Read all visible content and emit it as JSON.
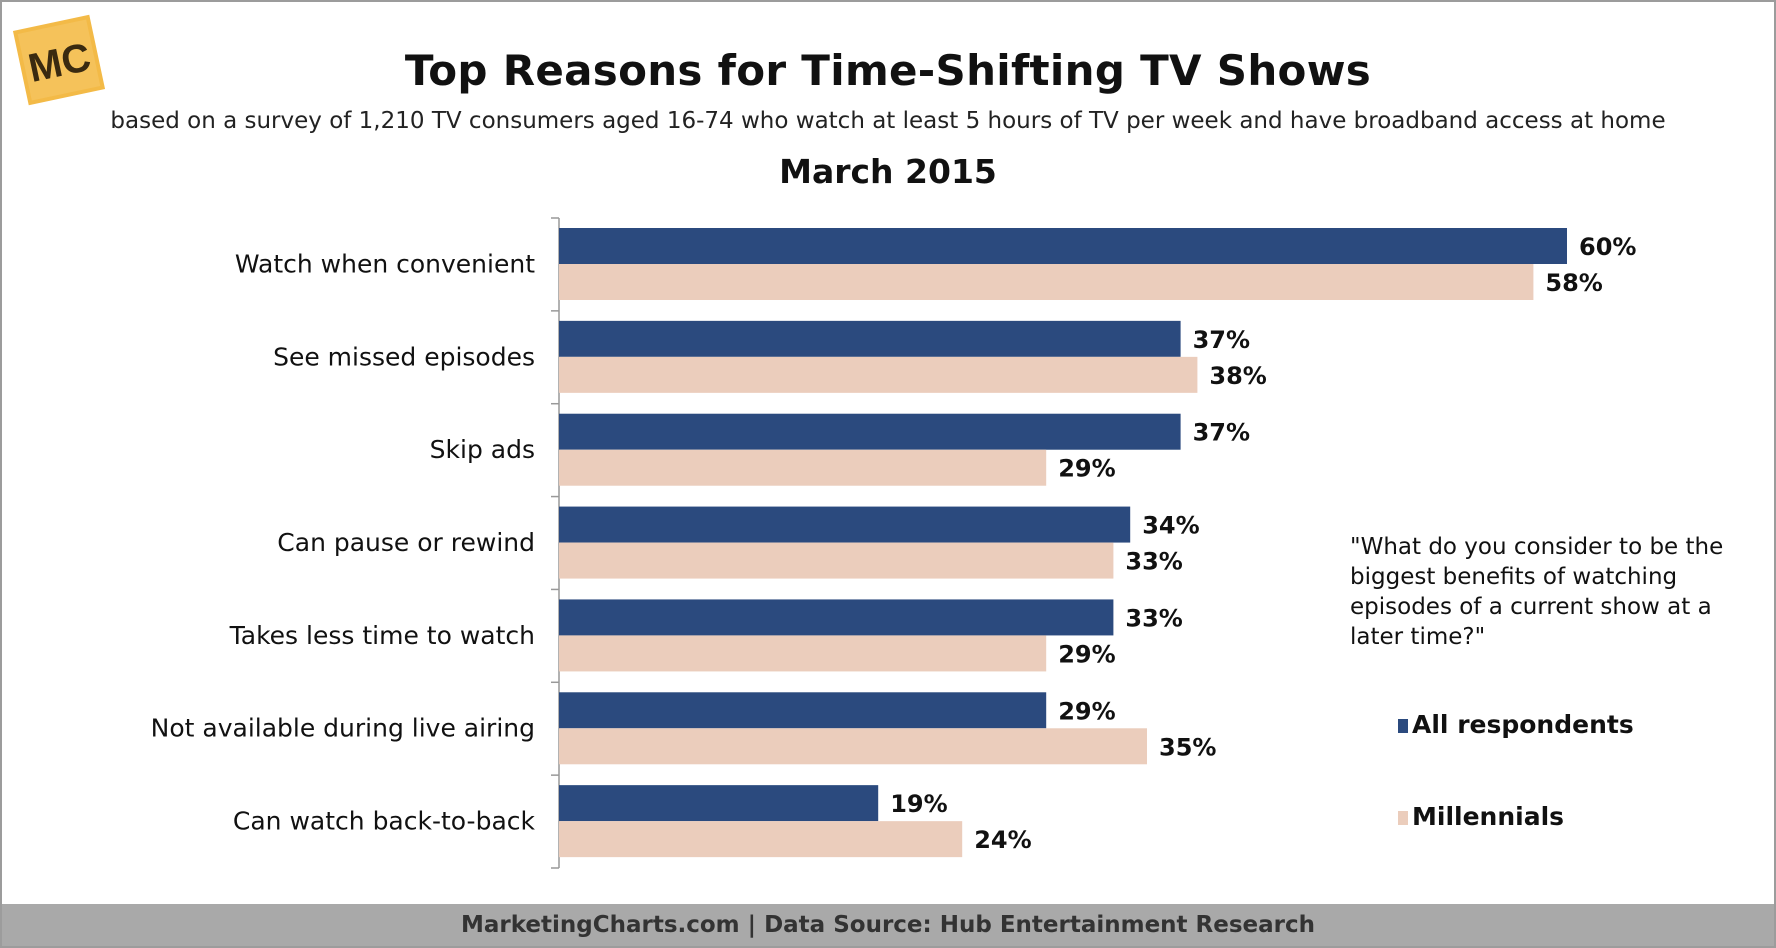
{
  "header": {
    "logo_text": "MC",
    "title": "Top Reasons for Time-Shifting TV Shows",
    "subtitle": "based on a survey of 1,210 TV consumers aged 16-74 who watch at least 5 hours of TV per week and have broadband access at home",
    "date": "March 2015"
  },
  "question": "\"What do you consider to be the biggest benefits of watching episodes of a current show at a later time?\"",
  "footer": "MarketingCharts.com | Data Source: Hub Entertainment Research",
  "colors": {
    "all_respondents": "#2b4a7e",
    "millennials": "#ebcdbc",
    "logo_bg": "#f3ba47"
  },
  "chart_data": {
    "type": "bar",
    "orientation": "horizontal",
    "categories": [
      "Watch when convenient",
      "See missed episodes",
      "Skip ads",
      "Can pause or rewind",
      "Takes less time to watch",
      "Not available during live airing",
      "Can watch back-to-back"
    ],
    "series": [
      {
        "name": "All respondents",
        "values": [
          60,
          37,
          37,
          34,
          33,
          29,
          19
        ]
      },
      {
        "name": "Millennials",
        "values": [
          58,
          38,
          29,
          33,
          29,
          35,
          24
        ]
      }
    ],
    "value_suffix": "%",
    "xlim": [
      0,
      64
    ],
    "grid": false,
    "legend": "right"
  }
}
